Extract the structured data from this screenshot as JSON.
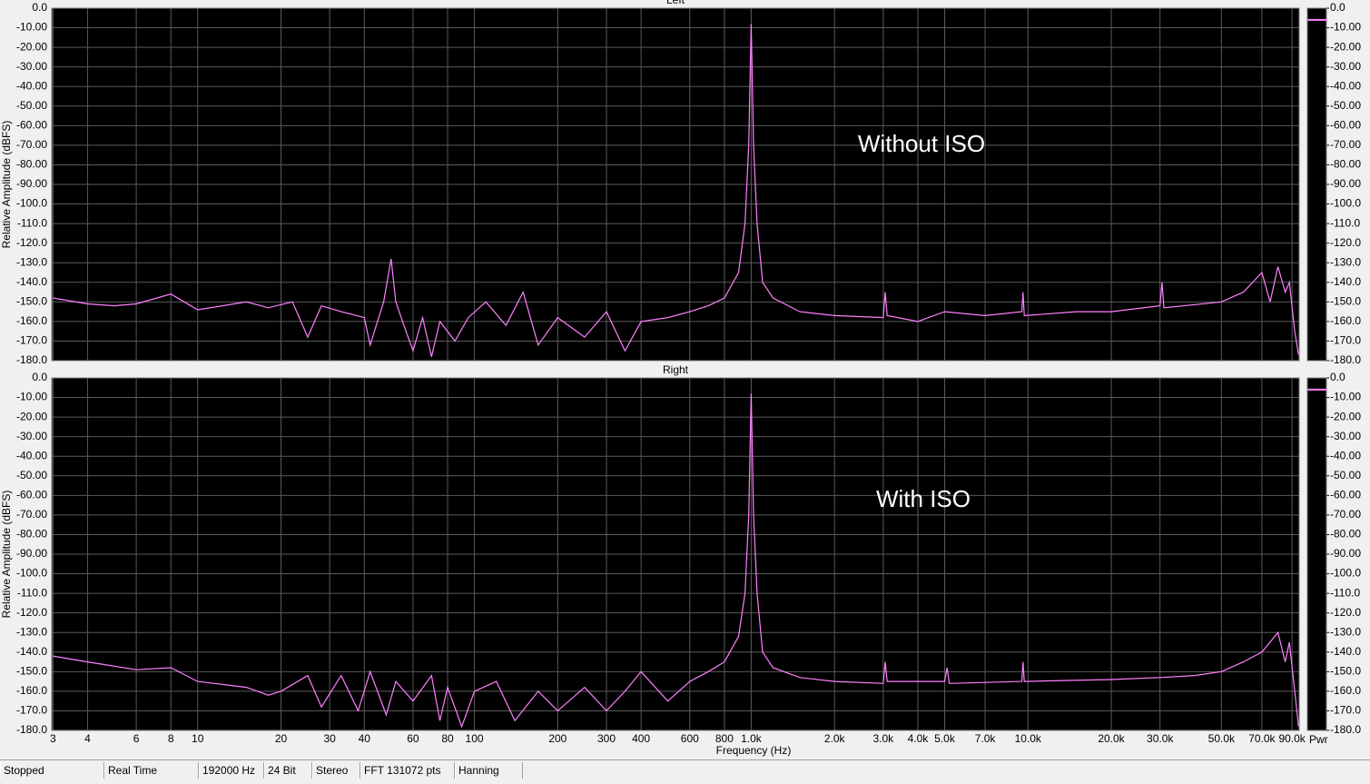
{
  "chart_data": [
    {
      "type": "line",
      "title": "Left",
      "y_label": "Relative Amplitude (dBFS)",
      "annotation": "Without ISO",
      "color": "#ff80ff",
      "log_x": true,
      "grid": true,
      "xlim": [
        2.97,
        95500
      ],
      "ylim": [
        -180,
        0
      ],
      "xticks": [
        3,
        4,
        6,
        8,
        10,
        20,
        30,
        40,
        60,
        80,
        100,
        200,
        300,
        400,
        600,
        800,
        {
          "value": 1000,
          "label": "1.0k"
        },
        {
          "value": 2000,
          "label": "2.0k"
        },
        {
          "value": 3000,
          "label": "3.0k"
        },
        {
          "value": 4000,
          "label": "4.0k"
        },
        {
          "value": 5000,
          "label": "5.0k"
        },
        {
          "value": 7000,
          "label": "7.0k"
        },
        {
          "value": 10000,
          "label": "10.0k"
        },
        {
          "value": 20000,
          "label": "20.0k"
        },
        {
          "value": 30000,
          "label": "30.0k"
        },
        {
          "value": 50000,
          "label": "50.0k"
        },
        {
          "value": 70000,
          "label": "70.0k"
        },
        {
          "value": 90000,
          "label": "90.0k"
        }
      ],
      "yticks": [
        {
          "value": 0,
          "label": "0.0"
        },
        {
          "value": -10,
          "label": "-10.00"
        },
        {
          "value": -20,
          "label": "-20.00"
        },
        {
          "value": -30,
          "label": "-30.00"
        },
        {
          "value": -40,
          "label": "-40.00"
        },
        {
          "value": -50,
          "label": "-50.00"
        },
        {
          "value": -60,
          "label": "-60.00"
        },
        {
          "value": -70,
          "label": "-70.00"
        },
        {
          "value": -80,
          "label": "-80.00"
        },
        {
          "value": -90,
          "label": "-90.00"
        },
        {
          "value": -100,
          "label": "-100.0"
        },
        {
          "value": -110,
          "label": "-110.0"
        },
        {
          "value": -120,
          "label": "-120.0"
        },
        {
          "value": -130,
          "label": "-130.0"
        },
        {
          "value": -140,
          "label": "-140.0"
        },
        {
          "value": -150,
          "label": "-150.0"
        },
        {
          "value": -160,
          "label": "-160.0"
        },
        {
          "value": -170,
          "label": "-170.0"
        },
        {
          "value": -180,
          "label": "-180.0"
        }
      ],
      "meter_value": -6,
      "x": [
        3,
        4,
        5,
        6,
        8,
        10,
        15,
        18,
        22,
        25,
        28,
        33,
        40,
        42,
        47,
        50,
        52,
        55,
        60,
        65,
        70,
        75,
        85,
        95,
        110,
        130,
        150,
        170,
        200,
        250,
        300,
        350,
        400,
        500,
        600,
        700,
        800,
        900,
        950,
        980,
        1000,
        1020,
        1050,
        1100,
        1200,
        1500,
        2000,
        3000,
        3050,
        3100,
        4000,
        5000,
        7000,
        9500,
        9600,
        9700,
        15000,
        20000,
        30000,
        30500,
        31000,
        50000,
        60000,
        70000,
        75000,
        80000,
        85000,
        88000,
        92000,
        95000
      ],
      "values": [
        -148,
        -151,
        -152,
        -151,
        -146,
        -154,
        -150,
        -153,
        -150,
        -168,
        -152,
        -155,
        -158,
        -172,
        -150,
        -128,
        -150,
        -160,
        -175,
        -158,
        -178,
        -160,
        -170,
        -158,
        -150,
        -162,
        -145,
        -172,
        -158,
        -168,
        -155,
        -175,
        -160,
        -158,
        -155,
        -152,
        -148,
        -135,
        -110,
        -70,
        -8,
        -70,
        -110,
        -140,
        -148,
        -155,
        -157,
        -158,
        -145,
        -157,
        -160,
        -155,
        -157,
        -155,
        -145,
        -157,
        -155,
        -155,
        -152,
        -140,
        -153,
        -150,
        -145,
        -135,
        -150,
        -132,
        -145,
        -140,
        -165,
        -177
      ]
    },
    {
      "type": "line",
      "title": "Right",
      "y_label": "Relative Amplitude (dBFS)",
      "x_label": "Frequency (Hz)",
      "annotation": "With ISO",
      "color": "#ff80ff",
      "log_x": true,
      "grid": true,
      "xlim": [
        2.97,
        95500
      ],
      "ylim": [
        -180,
        0
      ],
      "xticks": [
        3,
        4,
        6,
        8,
        10,
        20,
        30,
        40,
        60,
        80,
        100,
        200,
        300,
        400,
        600,
        800,
        {
          "value": 1000,
          "label": "1.0k"
        },
        {
          "value": 2000,
          "label": "2.0k"
        },
        {
          "value": 3000,
          "label": "3.0k"
        },
        {
          "value": 4000,
          "label": "4.0k"
        },
        {
          "value": 5000,
          "label": "5.0k"
        },
        {
          "value": 7000,
          "label": "7.0k"
        },
        {
          "value": 10000,
          "label": "10.0k"
        },
        {
          "value": 20000,
          "label": "20.0k"
        },
        {
          "value": 30000,
          "label": "30.0k"
        },
        {
          "value": 50000,
          "label": "50.0k"
        },
        {
          "value": 70000,
          "label": "70.0k"
        },
        {
          "value": 90000,
          "label": "90.0k"
        }
      ],
      "yticks": [
        {
          "value": 0,
          "label": "0.0"
        },
        {
          "value": -10,
          "label": "-10.00"
        },
        {
          "value": -20,
          "label": "-20.00"
        },
        {
          "value": -30,
          "label": "-30.00"
        },
        {
          "value": -40,
          "label": "-40.00"
        },
        {
          "value": -50,
          "label": "-50.00"
        },
        {
          "value": -60,
          "label": "-60.00"
        },
        {
          "value": -70,
          "label": "-70.00"
        },
        {
          "value": -80,
          "label": "-80.00"
        },
        {
          "value": -90,
          "label": "-90.00"
        },
        {
          "value": -100,
          "label": "-100.0"
        },
        {
          "value": -110,
          "label": "-110.0"
        },
        {
          "value": -120,
          "label": "-120.0"
        },
        {
          "value": -130,
          "label": "-130.0"
        },
        {
          "value": -140,
          "label": "-140.0"
        },
        {
          "value": -150,
          "label": "-150.0"
        },
        {
          "value": -160,
          "label": "-160.0"
        },
        {
          "value": -170,
          "label": "-170.0"
        },
        {
          "value": -180,
          "label": "-180.0"
        }
      ],
      "meter_value": -6,
      "x": [
        3,
        4,
        6,
        8,
        10,
        15,
        18,
        20,
        25,
        28,
        33,
        38,
        42,
        48,
        52,
        60,
        70,
        75,
        80,
        90,
        100,
        120,
        140,
        170,
        200,
        250,
        300,
        350,
        400,
        500,
        600,
        700,
        800,
        900,
        950,
        980,
        1000,
        1020,
        1050,
        1100,
        1200,
        1500,
        2000,
        3000,
        3050,
        3100,
        5000,
        5100,
        5200,
        9500,
        9600,
        9700,
        20000,
        30000,
        40000,
        50000,
        60000,
        70000,
        80000,
        85000,
        88000,
        92000,
        95000
      ],
      "values": [
        -142,
        -145,
        -149,
        -148,
        -155,
        -158,
        -162,
        -160,
        -152,
        -168,
        -152,
        -170,
        -150,
        -172,
        -155,
        -165,
        -152,
        -175,
        -158,
        -178,
        -160,
        -155,
        -175,
        -160,
        -170,
        -158,
        -170,
        -160,
        -150,
        -165,
        -155,
        -150,
        -145,
        -132,
        -110,
        -70,
        -8,
        -70,
        -110,
        -140,
        -148,
        -153,
        -155,
        -156,
        -145,
        -155,
        -155,
        -148,
        -156,
        -155,
        -145,
        -155,
        -154,
        -153,
        -152,
        -150,
        -145,
        -140,
        -130,
        -145,
        -135,
        -160,
        -178
      ]
    }
  ],
  "meter_label": "Pwr",
  "status_bar": [
    "Stopped",
    "Real Time",
    "192000 Hz",
    "24 Bit",
    "Stereo",
    "FFT 131072 pts",
    "Hanning"
  ]
}
